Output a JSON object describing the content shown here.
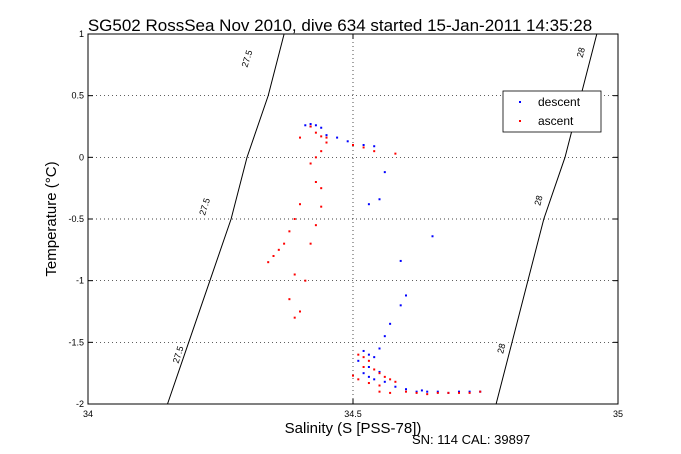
{
  "chart_data": {
    "type": "scatter",
    "title": "SG502 RossSea Nov 2010, dive 634 started 15-Jan-2011 14:35:28",
    "xlabel": "Salinity (S [PSS-78])",
    "ylabel": "Temperature (°C)",
    "footer": "SN: 114  CAL: 39897",
    "xlim": [
      34,
      35
    ],
    "ylim": [
      -2,
      1
    ],
    "xticks": [
      "34",
      "34.5",
      "35"
    ],
    "yticks": [
      "1",
      "0.5",
      "0",
      "-0.5",
      "-1",
      "-1.5",
      "-2"
    ],
    "grid": true,
    "legend_position": "top-right",
    "series": [
      {
        "name": "descent",
        "color": "#0000ff",
        "x": [
          34.41,
          34.42,
          34.43,
          34.44,
          34.42,
          34.45,
          34.47,
          34.49,
          34.52,
          34.54,
          34.56,
          34.53,
          34.55,
          34.59,
          34.6,
          34.65,
          34.57,
          34.59,
          34.56,
          34.55,
          34.52,
          34.51,
          34.53,
          34.54,
          34.53,
          34.52,
          34.53,
          34.54,
          34.55,
          34.56,
          34.58,
          34.6,
          34.62,
          34.63,
          34.64,
          34.66,
          34.68,
          34.7,
          34.72,
          34.74
        ],
        "y": [
          0.26,
          0.27,
          0.26,
          0.24,
          0.25,
          0.18,
          0.16,
          0.13,
          0.1,
          0.09,
          -0.12,
          -0.38,
          -0.34,
          -0.84,
          -1.12,
          -0.64,
          -1.35,
          -1.2,
          -1.45,
          -1.55,
          -1.57,
          -1.65,
          -1.6,
          -1.62,
          -1.7,
          -1.75,
          -1.78,
          -1.8,
          -1.74,
          -1.82,
          -1.86,
          -1.88,
          -1.9,
          -1.89,
          -1.9,
          -1.9,
          -1.91,
          -1.9,
          -1.9,
          -1.9
        ]
      },
      {
        "name": "ascent",
        "color": "#ff0000",
        "x": [
          34.42,
          34.43,
          34.44,
          34.45,
          34.45,
          34.44,
          34.43,
          34.4,
          34.42,
          34.43,
          34.44,
          34.44,
          34.43,
          34.42,
          34.4,
          34.39,
          34.38,
          34.37,
          34.36,
          34.35,
          34.34,
          34.38,
          34.39,
          34.4,
          34.39,
          34.41,
          34.5,
          34.52,
          34.54,
          34.58,
          34.51,
          34.52,
          34.53,
          34.52,
          34.54,
          34.55,
          34.56,
          34.57,
          34.58,
          34.55,
          34.53,
          34.51,
          34.5,
          34.55,
          34.57,
          34.6,
          34.62,
          34.64,
          34.66,
          34.68,
          34.7,
          34.72,
          34.74
        ],
        "y": [
          0.25,
          0.2,
          0.17,
          0.16,
          0.12,
          0.05,
          0.0,
          0.16,
          -0.05,
          -0.2,
          -0.25,
          -0.4,
          -0.55,
          -0.7,
          -0.38,
          -0.5,
          -0.6,
          -0.7,
          -0.75,
          -0.8,
          -0.85,
          -1.15,
          -1.3,
          -1.25,
          -0.95,
          -1.0,
          0.1,
          0.08,
          0.05,
          0.03,
          -1.6,
          -1.62,
          -1.65,
          -1.7,
          -1.72,
          -1.75,
          -1.78,
          -1.8,
          -1.82,
          -1.85,
          -1.83,
          -1.8,
          -1.77,
          -1.9,
          -1.91,
          -1.9,
          -1.91,
          -1.92,
          -1.91,
          -1.91,
          -1.91,
          -1.91,
          -1.9
        ]
      }
    ],
    "contours": [
      {
        "label": "27.5",
        "points": [
          [
            34.15,
            -2.0
          ],
          [
            34.19,
            -1.5
          ],
          [
            34.23,
            -1.0
          ],
          [
            34.27,
            -0.5
          ],
          [
            34.3,
            0.0
          ],
          [
            34.34,
            0.5
          ],
          [
            34.37,
            1.0
          ]
        ],
        "label_positions": [
          [
            34.3,
            0.8
          ],
          [
            34.22,
            -0.4
          ],
          [
            34.17,
            -1.6
          ]
        ]
      },
      {
        "label": "28",
        "points": [
          [
            34.77,
            -2.0
          ],
          [
            34.8,
            -1.5
          ],
          [
            34.83,
            -1.0
          ],
          [
            34.86,
            -0.5
          ],
          [
            34.9,
            0.0
          ],
          [
            34.93,
            0.5
          ],
          [
            34.96,
            1.0
          ]
        ],
        "label_positions": [
          [
            34.93,
            0.85
          ],
          [
            34.85,
            -0.35
          ],
          [
            34.78,
            -1.55
          ]
        ]
      }
    ]
  }
}
